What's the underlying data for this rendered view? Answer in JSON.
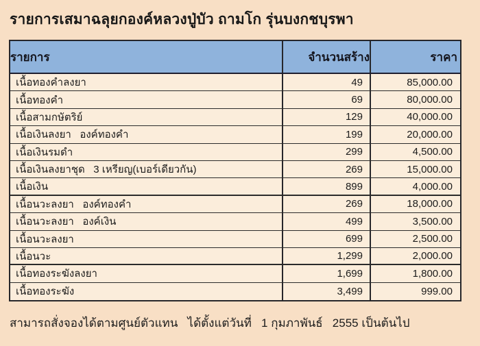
{
  "title": "รายการเสมาฉลุยกองค์หลวงปู่บัว ถามโก รุ่นบงกชบุรพา",
  "table": {
    "headers": {
      "item": "รายการ",
      "qty": "จำนวนสร้าง",
      "price": "ราคา"
    },
    "rows": [
      {
        "item": "เนื้อทองคำลงยา",
        "qty": "49",
        "price": "85,000.00"
      },
      {
        "item": "เนื้อทองคำ",
        "qty": "69",
        "price": "80,000.00"
      },
      {
        "item": "เนื้อสามกษัตริย์",
        "qty": "129",
        "price": "40,000.00"
      },
      {
        "item": "เนื้อเงินลงยา   องค์ทองคำ",
        "qty": "199",
        "price": "20,000.00"
      },
      {
        "item": "เนื้อเงินรมดำ",
        "qty": "299",
        "price": "4,500.00"
      },
      {
        "item": "เนื้อเงินลงยาชุด   3 เหรียญ(เบอร์เดียวกัน)",
        "qty": "269",
        "price": "15,000.00"
      },
      {
        "item": "เนื้อเงิน",
        "qty": "899",
        "price": "4,000.00"
      },
      {
        "item": "เนื้อนวะลงยา   องค์ทองคำ",
        "qty": "269",
        "price": "18,000.00"
      },
      {
        "item": "เนื้อนวะลงยา   องค์เงิน",
        "qty": "499",
        "price": "3,500.00"
      },
      {
        "item": "เนื้อนวะลงยา",
        "qty": "699",
        "price": "2,500.00"
      },
      {
        "item": "เนื้อนวะ",
        "qty": "1,299",
        "price": "2,000.00"
      },
      {
        "item": "เนื้อทองระฆังลงยา",
        "qty": "1,699",
        "price": "1,800.00"
      },
      {
        "item": "เนื้อทองระฆัง",
        "qty": "3,499",
        "price": "999.00"
      }
    ]
  },
  "footer": "สามารถสั่งจองได้ตามศูนย์ตัวแทน   ได้ตั้งแต่วันที่   1 กุมภาพันธ์   2555 เป็นต้นไป",
  "colors": {
    "page_bg": "#f8dfc5",
    "cell_bg": "#fbeddb",
    "header_bg": "#8fb3dc",
    "border": "#26262a",
    "text": "#1b1b1b"
  }
}
